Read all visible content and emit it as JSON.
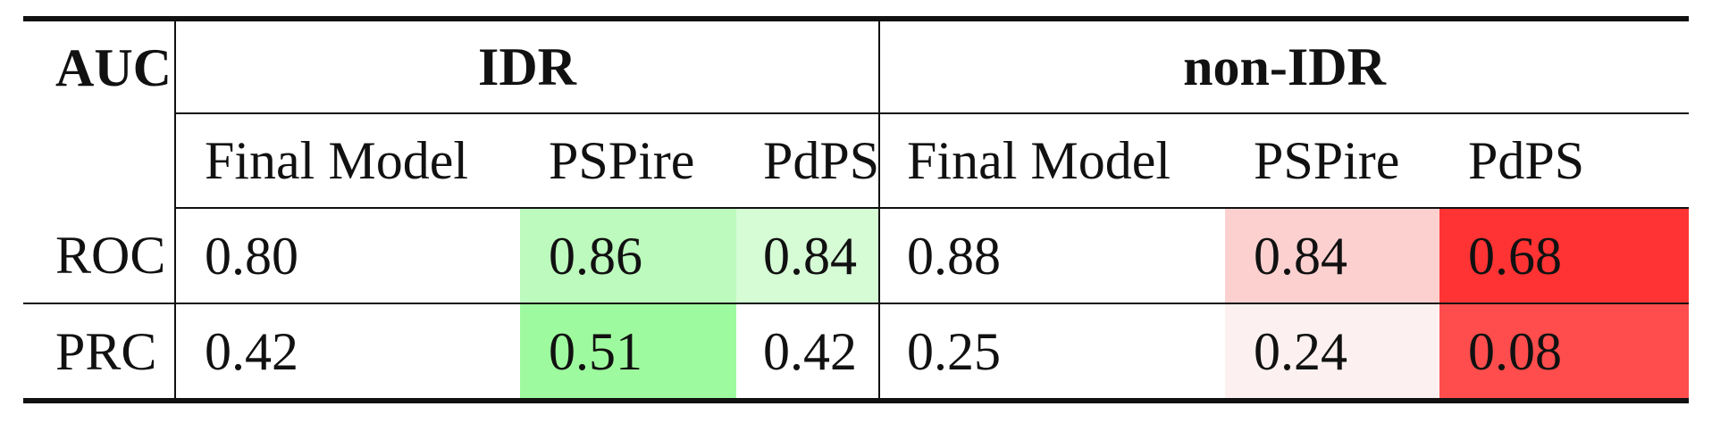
{
  "chart_data": {
    "type": "table",
    "corner_label": "AUC",
    "groups": [
      "IDR",
      "non-IDR"
    ],
    "columns": [
      "Final Model",
      "PSPire",
      "PdPS",
      "Final Model",
      "PSPire",
      "PdPS"
    ],
    "rows": [
      {
        "label": "ROC",
        "values": [
          "0.80",
          "0.86",
          "0.84",
          "0.88",
          "0.84",
          "0.68"
        ]
      },
      {
        "label": "PRC",
        "values": [
          "0.42",
          "0.51",
          "0.42",
          "0.25",
          "0.24",
          "0.08"
        ]
      }
    ],
    "cell_colors": [
      [
        "#ffffff",
        "#bdfabd",
        "#d5fcd5",
        "#ffffff",
        "#fdd0d0",
        "#ff3333"
      ],
      [
        "#ffffff",
        "#9efa9e",
        "#ffffff",
        "#ffffff",
        "#fdf0f0",
        "#ff4d4d"
      ]
    ]
  }
}
